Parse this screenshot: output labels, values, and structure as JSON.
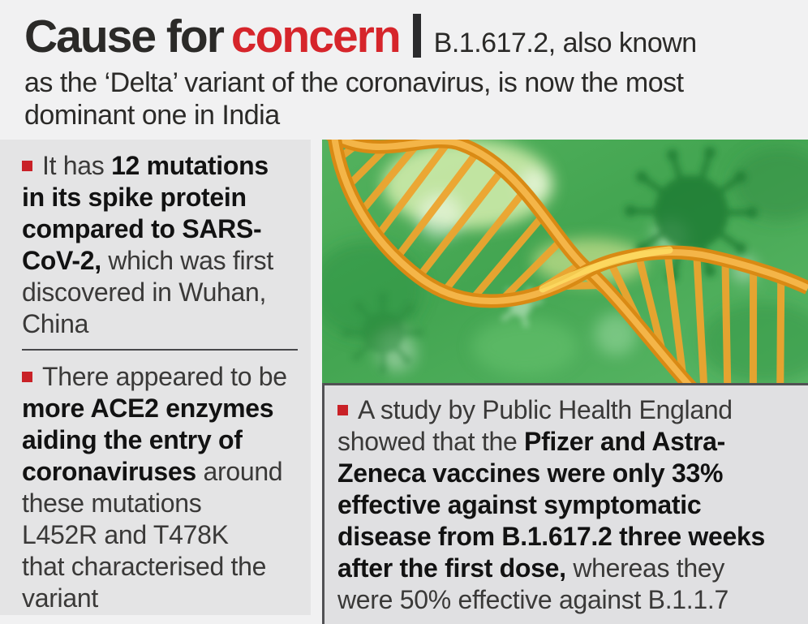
{
  "header": {
    "title_black": "Cause for",
    "title_red": "concern",
    "separator_bar": "headline-separator-bar",
    "subtitle_lead": "B.1.617.2, also known",
    "subtitle_rest": "as the ‘Delta’ variant of the coronavirus, is now the most\ndominant one in India"
  },
  "left_panel": {
    "bullets": [
      {
        "segments": [
          {
            "text": "It has ",
            "bold": false
          },
          {
            "text": "12 mutations\nin its spike protein\ncompared to SARS-\nCoV-2,",
            "bold": true
          },
          {
            "text": " which was first\ndiscovered in Wuhan,\nChina",
            "bold": false
          }
        ]
      },
      {
        "segments": [
          {
            "text": "There appeared to be\n",
            "bold": false
          },
          {
            "text": "more ACE2 enzymes\naiding the entry of\ncoronaviruses",
            "bold": true
          },
          {
            "text": " around\nthese mutations\nL452R and T478K\nthat characterised the\nvariant",
            "bold": false
          }
        ]
      }
    ]
  },
  "right_panel": {
    "bullets": [
      {
        "segments": [
          {
            "text": "A study by Public Health England\nshowed that the ",
            "bold": false
          },
          {
            "text": "Pfizer and Astra-\nZeneca vaccines were only 33%\neffective against symptomatic\ndisease from B.1.617.2 three weeks\nafter the first dose,",
            "bold": true
          },
          {
            "text": " whereas they\nwere 50% effective against B.1.1.7",
            "bold": false
          }
        ]
      }
    ]
  },
  "illustration": {
    "name": "dna-helix-over-coronavirus-green-background"
  },
  "icons": {
    "bullet": "red-square-bullet-icon"
  },
  "colors": {
    "accent_red": "#d6252b",
    "bullet_red": "#c92127",
    "headline_black": "#2b2a28",
    "page_bg": "#f1f1f2",
    "left_panel_bg": "#e4e4e5",
    "right_panel_bg": "#e0e0e2",
    "rule_dark": "#47474a",
    "image_green": "#46a853",
    "dna_orange": "#d98a14"
  }
}
